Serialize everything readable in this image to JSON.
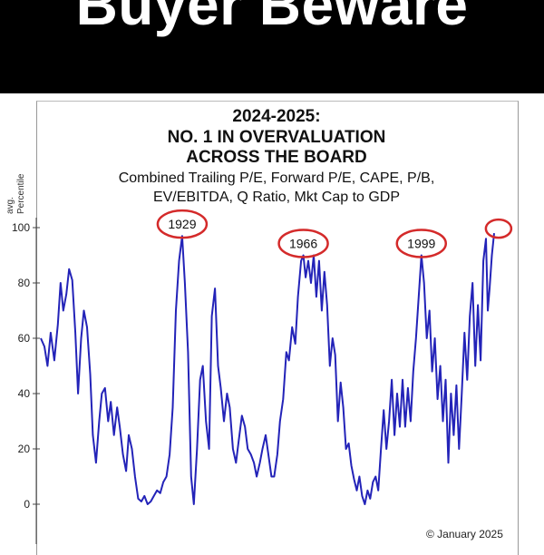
{
  "banner": {
    "title": "Buyer Beware"
  },
  "chart_data": {
    "type": "line",
    "title_lines": [
      "2024-2025:",
      "NO. 1 IN OVERVALUATION",
      "ACROSS THE BOARD"
    ],
    "subtitle_lines": [
      "Combined Trailing P/E, Forward P/E, CAPE, P/B,",
      "EV/EBITDA, Q Ratio, Mkt Cap to GDP"
    ],
    "ylabel_lines": [
      "avg.",
      "Percentile"
    ],
    "ylim": [
      0,
      100
    ],
    "yticks": [
      "0",
      "20",
      "40",
      "60",
      "80",
      "100"
    ],
    "xlim": [
      0,
      100
    ],
    "grid": false,
    "line_color": "#2323b8",
    "annotation_color": "#d42a2a",
    "series": [
      {
        "values": [
          [
            0,
            60
          ],
          [
            0.8,
            57
          ],
          [
            1.5,
            50
          ],
          [
            2.2,
            62
          ],
          [
            3,
            52
          ],
          [
            3.8,
            65
          ],
          [
            4.4,
            80
          ],
          [
            5,
            70
          ],
          [
            5.7,
            76
          ],
          [
            6.3,
            85
          ],
          [
            7,
            81
          ],
          [
            7.7,
            62
          ],
          [
            8.3,
            40
          ],
          [
            9,
            60
          ],
          [
            9.6,
            70
          ],
          [
            10.3,
            64
          ],
          [
            11,
            47
          ],
          [
            11.6,
            25
          ],
          [
            12.3,
            15
          ],
          [
            13,
            30
          ],
          [
            13.6,
            40
          ],
          [
            14.3,
            42
          ],
          [
            15,
            30
          ],
          [
            15.6,
            37
          ],
          [
            16.3,
            25
          ],
          [
            17,
            35
          ],
          [
            17.6,
            28
          ],
          [
            18.3,
            18
          ],
          [
            19,
            12
          ],
          [
            19.6,
            25
          ],
          [
            20.3,
            20
          ],
          [
            21,
            10
          ],
          [
            21.7,
            2
          ],
          [
            22.4,
            1
          ],
          [
            23.1,
            3
          ],
          [
            23.8,
            0
          ],
          [
            24.5,
            1
          ],
          [
            25.2,
            3
          ],
          [
            25.9,
            5
          ],
          [
            26.6,
            4
          ],
          [
            27.3,
            8
          ],
          [
            28,
            10
          ],
          [
            28.7,
            18
          ],
          [
            29.4,
            35
          ],
          [
            30.1,
            70
          ],
          [
            30.8,
            88
          ],
          [
            31.5,
            97
          ],
          [
            32.1,
            80
          ],
          [
            32.8,
            55
          ],
          [
            33.5,
            10
          ],
          [
            34.1,
            0
          ],
          [
            34.8,
            20
          ],
          [
            35.5,
            45
          ],
          [
            36.1,
            50
          ],
          [
            36.8,
            30
          ],
          [
            37.5,
            20
          ],
          [
            38.1,
            68
          ],
          [
            38.8,
            78
          ],
          [
            39.5,
            50
          ],
          [
            40.1,
            42
          ],
          [
            40.8,
            30
          ],
          [
            41.5,
            40
          ],
          [
            42.1,
            35
          ],
          [
            42.8,
            20
          ],
          [
            43.5,
            15
          ],
          [
            44.1,
            23
          ],
          [
            44.8,
            32
          ],
          [
            45.5,
            28
          ],
          [
            46.1,
            20
          ],
          [
            46.8,
            18
          ],
          [
            47.5,
            15
          ],
          [
            48.1,
            10
          ],
          [
            48.8,
            15
          ],
          [
            49.4,
            20
          ],
          [
            50.1,
            25
          ],
          [
            50.7,
            18
          ],
          [
            51.4,
            10
          ],
          [
            52,
            10
          ],
          [
            52.7,
            18
          ],
          [
            53.3,
            30
          ],
          [
            54,
            38
          ],
          [
            54.7,
            55
          ],
          [
            55.3,
            52
          ],
          [
            56,
            64
          ],
          [
            56.7,
            58
          ],
          [
            57.3,
            75
          ],
          [
            58,
            88
          ],
          [
            58.5,
            90
          ],
          [
            59,
            82
          ],
          [
            59.6,
            88
          ],
          [
            60.2,
            80
          ],
          [
            60.8,
            90
          ],
          [
            61.4,
            75
          ],
          [
            62,
            88
          ],
          [
            62.6,
            70
          ],
          [
            63.2,
            84
          ],
          [
            63.8,
            72
          ],
          [
            64.4,
            50
          ],
          [
            65,
            60
          ],
          [
            65.6,
            54
          ],
          [
            66.2,
            30
          ],
          [
            66.8,
            44
          ],
          [
            67.4,
            35
          ],
          [
            68,
            20
          ],
          [
            68.6,
            22
          ],
          [
            69.2,
            14
          ],
          [
            69.8,
            9
          ],
          [
            70.4,
            5
          ],
          [
            71,
            10
          ],
          [
            71.6,
            3
          ],
          [
            72.2,
            0
          ],
          [
            72.8,
            5
          ],
          [
            73.4,
            2
          ],
          [
            74,
            8
          ],
          [
            74.6,
            10
          ],
          [
            75.2,
            5
          ],
          [
            75.8,
            20
          ],
          [
            76.4,
            34
          ],
          [
            77,
            20
          ],
          [
            77.6,
            30
          ],
          [
            78.2,
            45
          ],
          [
            78.8,
            25
          ],
          [
            79.4,
            40
          ],
          [
            80,
            28
          ],
          [
            80.6,
            45
          ],
          [
            81.2,
            28
          ],
          [
            81.8,
            42
          ],
          [
            82.4,
            30
          ],
          [
            83,
            48
          ],
          [
            83.6,
            60
          ],
          [
            84.2,
            75
          ],
          [
            84.8,
            90
          ],
          [
            85.4,
            80
          ],
          [
            86,
            60
          ],
          [
            86.6,
            70
          ],
          [
            87.2,
            48
          ],
          [
            87.8,
            60
          ],
          [
            88.4,
            38
          ],
          [
            89,
            50
          ],
          [
            89.6,
            30
          ],
          [
            90.2,
            45
          ],
          [
            90.8,
            15
          ],
          [
            91.4,
            40
          ],
          [
            92,
            25
          ],
          [
            92.6,
            43
          ],
          [
            93.2,
            20
          ],
          [
            93.8,
            40
          ],
          [
            94.4,
            62
          ],
          [
            95,
            45
          ],
          [
            95.6,
            68
          ],
          [
            96.2,
            80
          ],
          [
            96.8,
            50
          ],
          [
            97.4,
            72
          ],
          [
            98,
            52
          ],
          [
            98.6,
            88
          ],
          [
            99.2,
            96
          ],
          [
            99.6,
            70
          ],
          [
            100,
            78
          ],
          [
            100.5,
            90
          ],
          [
            101,
            98
          ]
        ]
      }
    ],
    "annotations": [
      {
        "label": "1929",
        "x": 31.5,
        "y": 97
      },
      {
        "label": "1966",
        "x": 58.5,
        "y": 90
      },
      {
        "label": "1999",
        "x": 84.8,
        "y": 90
      },
      {
        "label": "",
        "x": 102,
        "y": 98
      }
    ],
    "footer": "© January 2025"
  }
}
